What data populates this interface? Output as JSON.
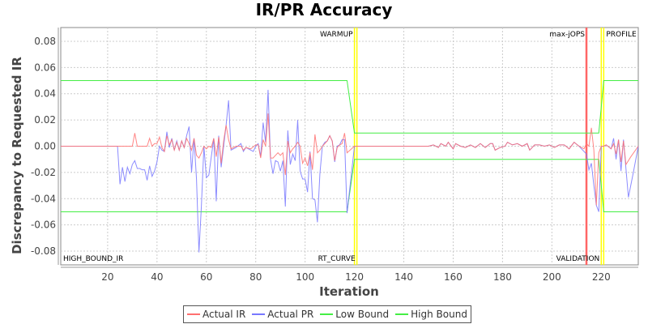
{
  "chart_data": {
    "type": "line",
    "title": "IR/PR Accuracy",
    "xlabel": "Iteration",
    "ylabel": "Discrepancy to Requested IR",
    "xlim": [
      1,
      235
    ],
    "ylim": [
      -0.0905,
      0.0905
    ],
    "xticks": [
      20,
      40,
      60,
      80,
      100,
      120,
      140,
      160,
      180,
      200,
      220
    ],
    "yticks": [
      -0.08,
      -0.06,
      -0.04,
      -0.02,
      0.0,
      0.02,
      0.04,
      0.06,
      0.08
    ],
    "ytick_labels": [
      "-0.08",
      "-0.06",
      "-0.04",
      "-0.02",
      "0.00",
      "0.02",
      "0.04",
      "0.06",
      "0.08"
    ],
    "grid": true,
    "legend_position": "bottom",
    "series": [
      {
        "name": "Actual IR",
        "color": "#ff7070",
        "points": [
          [
            1,
            0
          ],
          [
            30,
            0
          ],
          [
            31,
            0.01
          ],
          [
            32,
            0
          ],
          [
            36,
            0
          ],
          [
            37,
            0.006
          ],
          [
            38,
            0
          ],
          [
            39,
            0.002
          ],
          [
            40,
            0.002
          ],
          [
            41,
            0.007
          ],
          [
            42,
            -0.001
          ],
          [
            43,
            -0.004
          ],
          [
            44,
            0.008
          ],
          [
            45,
            0.001
          ],
          [
            46,
            0.005
          ],
          [
            47,
            -0.003
          ],
          [
            48,
            0.003
          ],
          [
            49,
            -0.003
          ],
          [
            50,
            0.004
          ],
          [
            51,
            -0.001
          ],
          [
            52,
            0.006
          ],
          [
            53,
            0.002
          ],
          [
            54,
            -0.003
          ],
          [
            55,
            0.006
          ],
          [
            56,
            -0.007
          ],
          [
            57,
            -0.009
          ],
          [
            58,
            -0.005
          ],
          [
            59,
            0
          ],
          [
            60,
            -0.002
          ],
          [
            61,
            0
          ],
          [
            62,
            -0.001
          ],
          [
            63,
            0.006
          ],
          [
            64,
            -0.008
          ],
          [
            65,
            0.007
          ],
          [
            66,
            -0.013
          ],
          [
            67,
            0.004
          ],
          [
            68,
            0.016
          ],
          [
            69,
            0.005
          ],
          [
            70,
            -0.002
          ],
          [
            72,
            0
          ],
          [
            74,
            0
          ],
          [
            75,
            -0.003
          ],
          [
            76,
            -0.001
          ],
          [
            78,
            -0.002
          ],
          [
            80,
            0.001
          ],
          [
            81,
            0.001
          ],
          [
            82,
            -0.009
          ],
          [
            83,
            0.005
          ],
          [
            84,
            0
          ],
          [
            85,
            0.025
          ],
          [
            86,
            -0.009
          ],
          [
            87,
            -0.009
          ],
          [
            88,
            -0.007
          ],
          [
            89,
            -0.005
          ],
          [
            90,
            -0.007
          ],
          [
            91,
            -0.005
          ],
          [
            92,
            -0.022
          ],
          [
            93,
            0.004
          ],
          [
            94,
            -0.005
          ],
          [
            95,
            -0.002
          ],
          [
            96,
            0
          ],
          [
            97,
            0.003
          ],
          [
            98,
            0
          ],
          [
            99,
            -0.013
          ],
          [
            100,
            -0.009
          ],
          [
            101,
            -0.015
          ],
          [
            102,
            -0.005
          ],
          [
            103,
            -0.018
          ],
          [
            104,
            0.009
          ],
          [
            105,
            -0.005
          ],
          [
            106,
            -0.003
          ],
          [
            107,
            0
          ],
          [
            108,
            0.002
          ],
          [
            109,
            0.004
          ],
          [
            110,
            0.008
          ],
          [
            111,
            0.004
          ],
          [
            112,
            -0.011
          ],
          [
            113,
            -0.001
          ],
          [
            114,
            0.001
          ],
          [
            115,
            0.002
          ],
          [
            116,
            0.01
          ],
          [
            117,
            -0.005
          ],
          [
            120,
            0
          ],
          [
            150,
            0
          ],
          [
            152,
            0.001
          ],
          [
            154,
            -0.001
          ],
          [
            155,
            0.002
          ],
          [
            157,
            0
          ],
          [
            158,
            0.003
          ],
          [
            160,
            -0.002
          ],
          [
            161,
            0.002
          ],
          [
            163,
            0
          ],
          [
            165,
            -0.001
          ],
          [
            167,
            0.001
          ],
          [
            169,
            -0.001
          ],
          [
            171,
            0.002
          ],
          [
            173,
            -0.001
          ],
          [
            175,
            0.002
          ],
          [
            176,
            0.002
          ],
          [
            177,
            -0.003
          ],
          [
            179,
            -0.001
          ],
          [
            181,
            0
          ],
          [
            182,
            0.003
          ],
          [
            184,
            0.001
          ],
          [
            186,
            0.002
          ],
          [
            188,
            0
          ],
          [
            190,
            0.002
          ],
          [
            191,
            -0.003
          ],
          [
            193,
            0.001
          ],
          [
            195,
            0.001
          ],
          [
            197,
            0
          ],
          [
            199,
            0.001
          ],
          [
            201,
            -0.001
          ],
          [
            203,
            0.001
          ],
          [
            205,
            0.001
          ],
          [
            207,
            -0.002
          ],
          [
            209,
            0.003
          ],
          [
            211,
            0
          ],
          [
            213,
            -0.002
          ],
          [
            214,
            0.002
          ],
          [
            215,
            0
          ],
          [
            216,
            0.014
          ],
          [
            217,
            -0.003
          ],
          [
            218,
            -0.045
          ],
          [
            219,
            -0.005
          ],
          [
            220,
            0
          ],
          [
            221,
            0
          ],
          [
            222,
            0.001
          ],
          [
            224,
            -0.002
          ],
          [
            225,
            0.002
          ],
          [
            226,
            -0.006
          ],
          [
            227,
            0.005
          ],
          [
            228,
            -0.012
          ],
          [
            229,
            0.004
          ],
          [
            230,
            -0.014
          ],
          [
            232,
            -0.008
          ],
          [
            235,
            0
          ]
        ]
      },
      {
        "name": "Actual PR",
        "color": "#7878ff",
        "points": [
          [
            1,
            0
          ],
          [
            24,
            0
          ],
          [
            25,
            -0.029
          ],
          [
            26,
            -0.016
          ],
          [
            27,
            -0.027
          ],
          [
            28,
            -0.016
          ],
          [
            29,
            -0.021
          ],
          [
            30,
            -0.014
          ],
          [
            31,
            -0.011
          ],
          [
            32,
            -0.017
          ],
          [
            33,
            -0.017
          ],
          [
            34,
            -0.018
          ],
          [
            35,
            -0.018
          ],
          [
            36,
            -0.026
          ],
          [
            37,
            -0.015
          ],
          [
            38,
            -0.023
          ],
          [
            39,
            -0.019
          ],
          [
            40,
            -0.012
          ],
          [
            41,
            0
          ],
          [
            42,
            -0.003
          ],
          [
            43,
            -0.004
          ],
          [
            44,
            0.011
          ],
          [
            45,
            -0.001
          ],
          [
            46,
            0.006
          ],
          [
            47,
            -0.003
          ],
          [
            48,
            0.004
          ],
          [
            49,
            -0.003
          ],
          [
            50,
            0.004
          ],
          [
            51,
            -0.001
          ],
          [
            52,
            0.008
          ],
          [
            53,
            0.015
          ],
          [
            54,
            -0.02
          ],
          [
            55,
            0.006
          ],
          [
            56,
            -0.025
          ],
          [
            57,
            -0.081
          ],
          [
            58,
            -0.045
          ],
          [
            59,
            0
          ],
          [
            60,
            -0.024
          ],
          [
            61,
            -0.022
          ],
          [
            62,
            -0.008
          ],
          [
            63,
            0.006
          ],
          [
            64,
            -0.042
          ],
          [
            65,
            0.008
          ],
          [
            66,
            -0.016
          ],
          [
            67,
            0
          ],
          [
            68,
            0.016
          ],
          [
            69,
            0.035
          ],
          [
            70,
            -0.003
          ],
          [
            72,
            -0.001
          ],
          [
            74,
            0.002
          ],
          [
            75,
            -0.004
          ],
          [
            76,
            -0.001
          ],
          [
            78,
            -0.003
          ],
          [
            79,
            -0.004
          ],
          [
            80,
            0
          ],
          [
            81,
            0.002
          ],
          [
            82,
            -0.008
          ],
          [
            83,
            0.018
          ],
          [
            84,
            0.003
          ],
          [
            85,
            0.043
          ],
          [
            86,
            -0.01
          ],
          [
            87,
            -0.021
          ],
          [
            88,
            -0.011
          ],
          [
            89,
            -0.012
          ],
          [
            90,
            -0.019
          ],
          [
            91,
            -0.011
          ],
          [
            92,
            -0.046
          ],
          [
            93,
            0.012
          ],
          [
            94,
            -0.014
          ],
          [
            95,
            -0.006
          ],
          [
            96,
            -0.011
          ],
          [
            97,
            0.02
          ],
          [
            98,
            -0.019
          ],
          [
            99,
            -0.025
          ],
          [
            100,
            -0.025
          ],
          [
            101,
            -0.035
          ],
          [
            102,
            -0.004
          ],
          [
            103,
            -0.04
          ],
          [
            104,
            -0.041
          ],
          [
            105,
            -0.058
          ],
          [
            106,
            -0.021
          ],
          [
            107,
            0
          ],
          [
            108,
            0.003
          ],
          [
            109,
            0.004
          ],
          [
            110,
            0.008
          ],
          [
            111,
            0.004
          ],
          [
            112,
            -0.012
          ],
          [
            113,
            0
          ],
          [
            114,
            0.001
          ],
          [
            115,
            0.005
          ],
          [
            116,
            0.005
          ],
          [
            117,
            -0.051
          ],
          [
            120,
            0
          ],
          [
            150,
            0
          ],
          [
            152,
            0.001
          ],
          [
            154,
            -0.001
          ],
          [
            155,
            0.002
          ],
          [
            157,
            0
          ],
          [
            158,
            0.003
          ],
          [
            160,
            -0.002
          ],
          [
            161,
            0.002
          ],
          [
            163,
            0
          ],
          [
            165,
            -0.001
          ],
          [
            167,
            0.001
          ],
          [
            169,
            -0.001
          ],
          [
            171,
            0.002
          ],
          [
            173,
            -0.001
          ],
          [
            175,
            0.002
          ],
          [
            176,
            0.002
          ],
          [
            177,
            -0.003
          ],
          [
            179,
            -0.001
          ],
          [
            181,
            0
          ],
          [
            182,
            0.003
          ],
          [
            184,
            0.001
          ],
          [
            186,
            0.002
          ],
          [
            188,
            0
          ],
          [
            190,
            0.002
          ],
          [
            191,
            -0.003
          ],
          [
            193,
            0.001
          ],
          [
            195,
            0.001
          ],
          [
            197,
            0
          ],
          [
            199,
            0.001
          ],
          [
            201,
            -0.001
          ],
          [
            203,
            0.001
          ],
          [
            205,
            0.001
          ],
          [
            207,
            -0.002
          ],
          [
            209,
            0.003
          ],
          [
            211,
            0
          ],
          [
            214,
            -0.006
          ],
          [
            215,
            -0.018
          ],
          [
            216,
            -0.013
          ],
          [
            217,
            -0.03
          ],
          [
            218,
            -0.045
          ],
          [
            219,
            -0.05
          ],
          [
            220,
            0
          ],
          [
            221,
            0
          ],
          [
            222,
            0.001
          ],
          [
            224,
            -0.002
          ],
          [
            225,
            0.006
          ],
          [
            226,
            -0.01
          ],
          [
            227,
            0.005
          ],
          [
            228,
            -0.019
          ],
          [
            229,
            0.005
          ],
          [
            231,
            -0.039
          ],
          [
            233,
            -0.02
          ],
          [
            235,
            0
          ]
        ]
      },
      {
        "name": "Low Bound",
        "color": "#44ee44",
        "points": [
          [
            1,
            -0.05
          ],
          [
            117,
            -0.05
          ],
          [
            120,
            -0.01
          ],
          [
            219,
            -0.01
          ],
          [
            221,
            -0.05
          ],
          [
            235,
            -0.05
          ]
        ]
      },
      {
        "name": "High Bound",
        "color": "#44ee44",
        "points": [
          [
            1,
            0.05
          ],
          [
            117,
            0.05
          ],
          [
            120,
            0.01
          ],
          [
            219,
            0.01
          ],
          [
            221,
            0.05
          ],
          [
            235,
            0.05
          ]
        ]
      }
    ],
    "markers": [
      {
        "x": 1,
        "label": "HIGH_BOUND_IR",
        "color": "#ffff00",
        "label_pos": "bottom-right"
      },
      {
        "x": 120,
        "label": "WARMUP",
        "color": "#ffff00",
        "label_pos": "top-left"
      },
      {
        "x": 121,
        "label": "RT_CURVE",
        "color": "#ffff00",
        "label_pos": "bottom-left"
      },
      {
        "x": 214,
        "label": "max-jOPS",
        "color": "#ff6666",
        "label_pos": "top-left"
      },
      {
        "x": 220,
        "label": "VALIDATION",
        "color": "#ffff00",
        "label_pos": "bottom-left"
      },
      {
        "x": 221,
        "label": "PROFILE",
        "color": "#ffff00",
        "label_pos": "top-right"
      }
    ]
  }
}
